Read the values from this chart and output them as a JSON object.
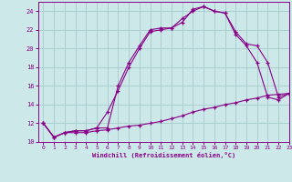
{
  "xlabel": "Windchill (Refroidissement éolien,°C)",
  "bg_color": "#cce8e8",
  "grid_color": "#aacfcf",
  "line_color": "#880088",
  "xmin": -0.5,
  "xmax": 23,
  "ymin": 10,
  "ymax": 25,
  "yticks": [
    10,
    12,
    14,
    16,
    18,
    20,
    22,
    24
  ],
  "xticks": [
    0,
    1,
    2,
    3,
    4,
    5,
    6,
    7,
    8,
    9,
    10,
    11,
    12,
    13,
    14,
    15,
    16,
    17,
    18,
    19,
    20,
    21,
    22,
    23
  ],
  "line1_x": [
    0,
    1,
    2,
    3,
    4,
    5,
    6,
    7,
    8,
    9,
    10,
    11,
    12,
    13,
    14,
    15,
    16,
    17,
    18,
    19,
    20,
    21,
    22,
    23
  ],
  "line1_y": [
    12.0,
    10.5,
    11.0,
    11.0,
    11.0,
    11.2,
    11.3,
    11.5,
    11.7,
    11.8,
    12.0,
    12.2,
    12.5,
    12.8,
    13.2,
    13.5,
    13.7,
    14.0,
    14.2,
    14.5,
    14.7,
    15.0,
    15.1,
    15.2
  ],
  "line2_x": [
    0,
    1,
    2,
    3,
    4,
    5,
    6,
    7,
    8,
    9,
    10,
    11,
    12,
    13,
    14,
    15,
    16,
    17,
    18,
    19,
    20,
    21,
    22,
    23
  ],
  "line2_y": [
    12.0,
    10.5,
    11.0,
    11.2,
    11.2,
    11.5,
    13.2,
    15.5,
    18.0,
    20.0,
    21.8,
    22.0,
    22.2,
    23.2,
    24.0,
    24.5,
    24.0,
    23.8,
    21.5,
    20.3,
    18.5,
    14.8,
    14.5,
    15.2
  ],
  "line3_x": [
    0,
    1,
    2,
    3,
    4,
    5,
    6,
    7,
    8,
    9,
    10,
    11,
    12,
    13,
    14,
    15,
    16,
    17,
    18,
    19,
    20,
    21,
    22,
    23
  ],
  "line3_y": [
    12.0,
    10.5,
    11.0,
    11.2,
    11.2,
    11.5,
    11.5,
    16.0,
    18.5,
    20.3,
    22.0,
    22.2,
    22.2,
    22.8,
    24.2,
    24.5,
    24.0,
    23.8,
    21.8,
    20.5,
    20.3,
    18.5,
    14.8,
    15.2
  ]
}
